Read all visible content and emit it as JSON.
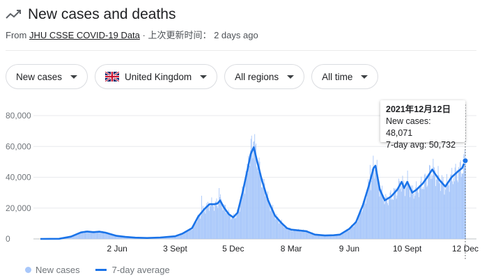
{
  "header": {
    "title": "New cases and deaths",
    "source_prefix": "From",
    "source_link": "JHU CSSE COVID-19 Data",
    "source_suffix": "· 上次更新时间： 2 days ago"
  },
  "filters": [
    {
      "label": "New cases"
    },
    {
      "label": "United Kingdom",
      "flag": "uk-flag-icon"
    },
    {
      "label": "All regions"
    },
    {
      "label": "All time"
    }
  ],
  "tooltip": {
    "date": "2021年12月12日",
    "new_cases": "New cases: 48,071",
    "avg": "7-day avg: 50,732"
  },
  "legend": {
    "bars": "New cases",
    "line": "7-day average"
  },
  "colors": {
    "bars": "#a8c7fa",
    "line": "#1a73e8",
    "grid": "#e8eaed"
  },
  "chart_data": {
    "type": "bar",
    "ylim": [
      0,
      80000
    ],
    "yticks": [
      0,
      20000,
      40000,
      60000,
      80000
    ],
    "ytick_labels": [
      "0",
      "20,000",
      "40,000",
      "60,000",
      "80,000"
    ],
    "xtick_labels": [
      {
        "label": "2 Jun",
        "date": "2020-06-02"
      },
      {
        "label": "3 Sept",
        "date": "2020-09-03"
      },
      {
        "label": "5 Dec",
        "date": "2020-12-05"
      },
      {
        "label": "8 Mar",
        "date": "2021-03-08"
      },
      {
        "label": "9 Jun",
        "date": "2021-06-09"
      },
      {
        "label": "10 Sept",
        "date": "2021-09-10"
      },
      {
        "label": "12 Dec",
        "date": "2021-12-12"
      }
    ],
    "x_start": "2020-01-31",
    "x_end": "2021-12-12",
    "series": [
      {
        "name": "7-day average",
        "points": [
          [
            "2020-01-31",
            0
          ],
          [
            "2020-03-01",
            100
          ],
          [
            "2020-03-20",
            1500
          ],
          [
            "2020-04-05",
            4200
          ],
          [
            "2020-04-15",
            4800
          ],
          [
            "2020-04-25",
            4400
          ],
          [
            "2020-05-05",
            4700
          ],
          [
            "2020-05-15",
            4000
          ],
          [
            "2020-06-01",
            2000
          ],
          [
            "2020-06-15",
            1300
          ],
          [
            "2020-07-01",
            800
          ],
          [
            "2020-07-20",
            600
          ],
          [
            "2020-08-10",
            900
          ],
          [
            "2020-09-03",
            1700
          ],
          [
            "2020-09-15",
            3500
          ],
          [
            "2020-09-30",
            7000
          ],
          [
            "2020-10-10",
            14500
          ],
          [
            "2020-10-20",
            19500
          ],
          [
            "2020-10-28",
            22500
          ],
          [
            "2020-11-05",
            22500
          ],
          [
            "2020-11-10",
            23000
          ],
          [
            "2020-11-14",
            25000
          ],
          [
            "2020-11-20",
            20500
          ],
          [
            "2020-11-28",
            16000
          ],
          [
            "2020-12-05",
            14000
          ],
          [
            "2020-12-12",
            17000
          ],
          [
            "2020-12-20",
            30000
          ],
          [
            "2020-12-28",
            45000
          ],
          [
            "2021-01-02",
            55000
          ],
          [
            "2021-01-07",
            59500
          ],
          [
            "2021-01-12",
            51000
          ],
          [
            "2021-01-20",
            38000
          ],
          [
            "2021-01-30",
            25000
          ],
          [
            "2021-02-10",
            15000
          ],
          [
            "2021-02-20",
            10500
          ],
          [
            "2021-03-01",
            7000
          ],
          [
            "2021-03-08",
            6000
          ],
          [
            "2021-03-20",
            5500
          ],
          [
            "2021-04-01",
            5000
          ],
          [
            "2021-04-15",
            2800
          ],
          [
            "2021-05-01",
            2200
          ],
          [
            "2021-05-15",
            2400
          ],
          [
            "2021-05-25",
            2800
          ],
          [
            "2021-06-09",
            6500
          ],
          [
            "2021-06-20",
            11000
          ],
          [
            "2021-07-01",
            22000
          ],
          [
            "2021-07-10",
            34000
          ],
          [
            "2021-07-18",
            46000
          ],
          [
            "2021-07-21",
            47500
          ],
          [
            "2021-07-28",
            32000
          ],
          [
            "2021-08-05",
            25000
          ],
          [
            "2021-08-15",
            27500
          ],
          [
            "2021-08-25",
            32000
          ],
          [
            "2021-09-01",
            37000
          ],
          [
            "2021-09-05",
            33000
          ],
          [
            "2021-09-10",
            37000
          ],
          [
            "2021-09-18",
            30000
          ],
          [
            "2021-09-25",
            32000
          ],
          [
            "2021-10-05",
            36000
          ],
          [
            "2021-10-12",
            40000
          ],
          [
            "2021-10-20",
            45000
          ],
          [
            "2021-10-25",
            42000
          ],
          [
            "2021-11-01",
            38000
          ],
          [
            "2021-11-10",
            34000
          ],
          [
            "2021-11-20",
            40000
          ],
          [
            "2021-12-01",
            44000
          ],
          [
            "2021-12-07",
            46000
          ],
          [
            "2021-12-12",
            50732
          ]
        ]
      }
    ],
    "bar_spikes": [
      [
        "2020-10-15",
        28000
      ],
      [
        "2020-11-12",
        33000
      ],
      [
        "2020-11-15",
        26000
      ],
      [
        "2020-12-29",
        54000
      ],
      [
        "2021-01-03",
        67000
      ],
      [
        "2021-01-06",
        63000
      ],
      [
        "2021-01-08",
        68000
      ],
      [
        "2021-07-12",
        48000
      ],
      [
        "2021-07-17",
        54000
      ],
      [
        "2021-09-02",
        41000
      ],
      [
        "2021-10-21",
        52000
      ],
      [
        "2021-12-09",
        55000
      ],
      [
        "2021-12-11",
        58000
      ]
    ],
    "highlight": {
      "date": "2021-12-12",
      "new_cases": 48071,
      "avg": 50732
    }
  }
}
